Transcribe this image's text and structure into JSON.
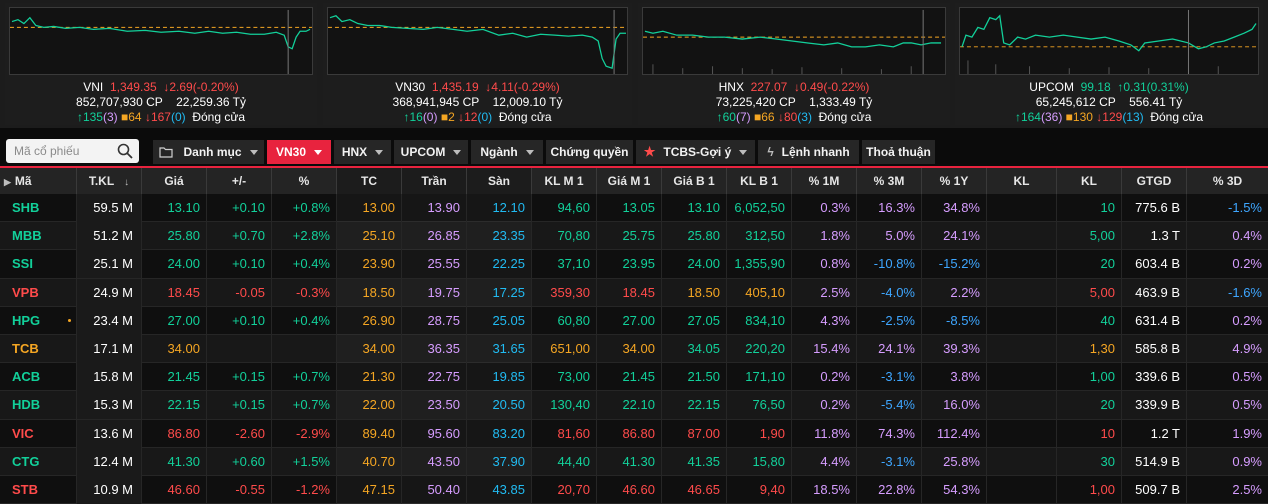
{
  "indices": [
    {
      "name": "VNI",
      "value": "1,349.35",
      "change": "↓2.69(-0.20%)",
      "change_color": "#ff4b4b",
      "volume": "852,707,930 CP",
      "turnover": "22,259.36 Tỷ",
      "up": "↑135",
      "ceil": "(3)",
      "ref": "64",
      "down": "↓167",
      "floor": "(0)",
      "status": "Đóng cửa"
    },
    {
      "name": "VN30",
      "value": "1,435.19",
      "change": "↓4.11(-0.29%)",
      "change_color": "#ff4b4b",
      "volume": "368,941,945 CP",
      "turnover": "12,009.10 Tỷ",
      "up": "↑16",
      "ceil": "(0)",
      "ref": "2",
      "down": "↓12",
      "floor": "(0)",
      "status": "Đóng cửa"
    },
    {
      "name": "HNX",
      "value": "227.07",
      "change": "↓0.49(-0.22%)",
      "change_color": "#ff4b4b",
      "volume": "73,225,420 CP",
      "turnover": "1,333.49 Tỷ",
      "up": "↑60",
      "ceil": "(7)",
      "ref": "66",
      "down": "↓80",
      "floor": "(3)",
      "status": "Đóng cửa"
    },
    {
      "name": "UPCOM",
      "value": "99.18",
      "change": "↑0.31(0.31%)",
      "change_color": "#12d09a",
      "volume": "65,245,612 CP",
      "turnover": "556.41 Tỷ",
      "up": "↑164",
      "ceil": "(36)",
      "ref": "130",
      "down": "↓129",
      "floor": "(13)",
      "status": "Đóng cửa"
    }
  ],
  "toolbar": {
    "search_placeholder": "Mã cổ phiếu",
    "tabs": [
      {
        "label": "Danh mục"
      },
      {
        "label": "VN30"
      },
      {
        "label": "HNX"
      },
      {
        "label": "UPCOM"
      },
      {
        "label": "Ngành"
      },
      {
        "label": "Chứng quyền"
      },
      {
        "label": "TCBS-Gợi ý"
      },
      {
        "label": "Lệnh nhanh"
      },
      {
        "label": "Thoả thuận"
      }
    ]
  },
  "table": {
    "columns": [
      "Mã",
      "T.KL",
      "Giá",
      "+/-",
      "%",
      "TC",
      "Trần",
      "Sàn",
      "KL M 1",
      "Giá M 1",
      "Giá B 1",
      "KL B 1",
      "% 1M",
      "% 3M",
      "% 1Y",
      "KL",
      "KL",
      "GTGD",
      "% 3D"
    ],
    "rows": [
      {
        "sym": "SHB",
        "c": "g",
        "tkl": "59.5 M",
        "gia": "13.10",
        "chg": "+0.10",
        "pct": "+0.8%",
        "tc": "13.00",
        "tran": "13.90",
        "san": "12.10",
        "klm1": "94,60",
        "giam1": "13.05",
        "giab1": "13.10",
        "klb1": "6,052,50",
        "m1": "0.3%",
        "m3": "16.3%",
        "y1": "34.8%",
        "kl1": "",
        "kl2": "10",
        "gtgd": "775.6 B",
        "d3": "-1.5%"
      },
      {
        "sym": "MBB",
        "c": "g",
        "tkl": "51.2 M",
        "gia": "25.80",
        "chg": "+0.70",
        "pct": "+2.8%",
        "tc": "25.10",
        "tran": "26.85",
        "san": "23.35",
        "klm1": "70,80",
        "giam1": "25.75",
        "giab1": "25.80",
        "klb1": "312,50",
        "m1": "1.8%",
        "m3": "5.0%",
        "y1": "24.1%",
        "kl1": "",
        "kl2": "5,00",
        "gtgd": "1.3 T",
        "d3": "0.4%"
      },
      {
        "sym": "SSI",
        "c": "g",
        "tkl": "25.1 M",
        "gia": "24.00",
        "chg": "+0.10",
        "pct": "+0.4%",
        "tc": "23.90",
        "tran": "25.55",
        "san": "22.25",
        "klm1": "37,10",
        "giam1": "23.95",
        "giab1": "24.00",
        "klb1": "1,355,90",
        "m1": "0.8%",
        "m3": "-10.8%",
        "y1": "-15.2%",
        "kl1": "",
        "kl2": "20",
        "gtgd": "603.4 B",
        "d3": "0.2%"
      },
      {
        "sym": "VPB",
        "c": "r",
        "tkl": "24.9 M",
        "gia": "18.45",
        "chg": "-0.05",
        "pct": "-0.3%",
        "tc": "18.50",
        "tran": "19.75",
        "san": "17.25",
        "klm1": "359,30",
        "giam1": "18.45",
        "giab1": "18.50",
        "klb1": "405,10",
        "m1": "2.5%",
        "m3": "-4.0%",
        "y1": "2.2%",
        "kl1": "",
        "kl2": "5,00",
        "gtgd": "463.9 B",
        "d3": "-1.6%"
      },
      {
        "sym": "HPG",
        "c": "g",
        "tkl": "23.4 M",
        "gia": "27.00",
        "chg": "+0.10",
        "pct": "+0.4%",
        "tc": "26.90",
        "tran": "28.75",
        "san": "25.05",
        "klm1": "60,80",
        "giam1": "27.00",
        "giab1": "27.05",
        "klb1": "834,10",
        "m1": "4.3%",
        "m3": "-2.5%",
        "y1": "-8.5%",
        "kl1": "",
        "kl2": "40",
        "gtgd": "631.4 B",
        "d3": "0.2%"
      },
      {
        "sym": "TCB",
        "c": "y",
        "tkl": "17.1 M",
        "gia": "34.00",
        "chg": "",
        "pct": "",
        "tc": "34.00",
        "tran": "36.35",
        "san": "31.65",
        "klm1": "651,00",
        "giam1": "34.00",
        "giab1": "34.05",
        "klb1": "220,20",
        "m1": "15.4%",
        "m3": "24.1%",
        "y1": "39.3%",
        "kl1": "",
        "kl2": "1,30",
        "gtgd": "585.8 B",
        "d3": "4.9%"
      },
      {
        "sym": "ACB",
        "c": "g",
        "tkl": "15.8 M",
        "gia": "21.45",
        "chg": "+0.15",
        "pct": "+0.7%",
        "tc": "21.30",
        "tran": "22.75",
        "san": "19.85",
        "klm1": "73,00",
        "giam1": "21.45",
        "giab1": "21.50",
        "klb1": "171,10",
        "m1": "0.2%",
        "m3": "-3.1%",
        "y1": "3.8%",
        "kl1": "",
        "kl2": "1,00",
        "gtgd": "339.6 B",
        "d3": "0.5%"
      },
      {
        "sym": "HDB",
        "c": "g",
        "tkl": "15.3 M",
        "gia": "22.15",
        "chg": "+0.15",
        "pct": "+0.7%",
        "tc": "22.00",
        "tran": "23.50",
        "san": "20.50",
        "klm1": "130,40",
        "giam1": "22.10",
        "giab1": "22.15",
        "klb1": "76,50",
        "m1": "0.2%",
        "m3": "-5.4%",
        "y1": "16.0%",
        "kl1": "",
        "kl2": "20",
        "gtgd": "339.9 B",
        "d3": "0.5%"
      },
      {
        "sym": "VIC",
        "c": "r",
        "tkl": "13.6 M",
        "gia": "86.80",
        "chg": "-2.60",
        "pct": "-2.9%",
        "tc": "89.40",
        "tran": "95.60",
        "san": "83.20",
        "klm1": "81,60",
        "giam1": "86.80",
        "giab1": "87.00",
        "klb1": "1,90",
        "m1": "11.8%",
        "m3": "74.3%",
        "y1": "112.4%",
        "kl1": "",
        "kl2": "10",
        "gtgd": "1.2 T",
        "d3": "1.9%"
      },
      {
        "sym": "CTG",
        "c": "g",
        "tkl": "12.4 M",
        "gia": "41.30",
        "chg": "+0.60",
        "pct": "+1.5%",
        "tc": "40.70",
        "tran": "43.50",
        "san": "37.90",
        "klm1": "44,40",
        "giam1": "41.30",
        "giab1": "41.35",
        "klb1": "15,80",
        "m1": "4.4%",
        "m3": "-3.1%",
        "y1": "25.8%",
        "kl1": "",
        "kl2": "30",
        "gtgd": "514.9 B",
        "d3": "0.9%"
      },
      {
        "sym": "STB",
        "c": "r",
        "tkl": "10.9 M",
        "gia": "46.60",
        "chg": "-0.55",
        "pct": "-1.2%",
        "tc": "47.15",
        "tran": "50.40",
        "san": "43.85",
        "klm1": "20,70",
        "giam1": "46.60",
        "giab1": "46.65",
        "klb1": "9,40",
        "m1": "18.5%",
        "m3": "22.8%",
        "y1": "54.3%",
        "kl1": "",
        "kl2": "1,00",
        "gtgd": "509.7 B",
        "d3": "2.5%"
      }
    ]
  },
  "colors": {
    "up": "#12d09a",
    "down": "#ff4b4b",
    "ref": "#f5a623",
    "ceil": "#d69dff",
    "floor": "#21bbf2",
    "accent": "#e8233e"
  }
}
